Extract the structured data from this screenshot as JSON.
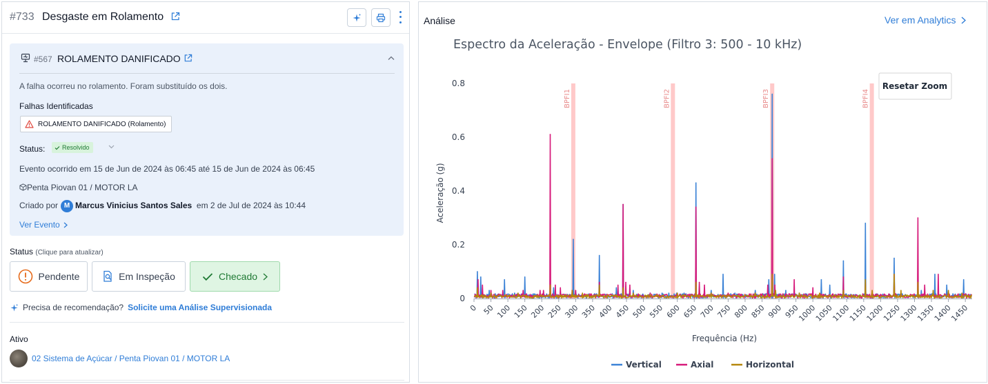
{
  "header": {
    "event_number": "#733",
    "event_title": "Desgaste em Rolamento"
  },
  "failure_card": {
    "number": "#567",
    "title": "ROLAMENTO DANIFICADO",
    "description": "A falha ocorreu no rolamento. Foram substituído os dois.",
    "identified_label": "Falhas Identificadas",
    "identified_tag": "ROLAMENTO DANIFICADO (Rolamento)",
    "status_label": "Status:",
    "status_value": "Resolvido",
    "event_time": "Evento ocorrido em 15 de Jun de 2024 às 06:45 até 15 de Jun de 2024 às 06:45",
    "asset_path": "Penta Piovan 01 / MOTOR LA",
    "created_prefix": "Criado por",
    "created_avatar": "M",
    "created_by": "Marcus Vinicius Santos Sales",
    "created_suffix": "em 2 de Jul de 2024 às 10:44",
    "view_event": "Ver Evento"
  },
  "status_section": {
    "label": "Status",
    "hint": "(Clique para atualizar)",
    "buttons": [
      "Pendente",
      "Em Inspeção",
      "Checado"
    ],
    "selected": "Checado"
  },
  "recommendation": {
    "question": "Precisa de recomendação?",
    "link": "Solicite uma Análise Supervisionada"
  },
  "asset": {
    "label": "Ativo",
    "path": "02 Sistema de Açúcar / Penta Piovan 01 / MOTOR LA"
  },
  "analysis": {
    "title": "Análise",
    "analytics_link": "Ver em Analytics",
    "reset_zoom": "Resetar Zoom"
  },
  "colors": {
    "vertical": "#3b82d6",
    "axial": "#d6197a",
    "horizontal": "#b5860b",
    "bpfi_band": "#ffc9c9",
    "accent": "#2f7dd7"
  },
  "chart_data": {
    "type": "line",
    "title": "Espectro da Aceleração - Envelope (Filtro 3: 500 - 10 kHz)",
    "xlabel": "Frequência (Hz)",
    "ylabel": "Aceleração (g)",
    "xlim": [
      0,
      1470
    ],
    "ylim": [
      0,
      0.8
    ],
    "x_ticks": [
      0,
      50,
      100,
      150,
      200,
      250,
      300,
      350,
      400,
      450,
      500,
      550,
      600,
      650,
      700,
      750,
      800,
      850,
      900,
      950,
      1000,
      1050,
      1100,
      1150,
      1200,
      1250,
      1300,
      1350,
      1400,
      1450
    ],
    "y_ticks": [
      0,
      0.2,
      0.4,
      0.6,
      0.8
    ],
    "y_tick_labels": [
      "0",
      "0.2",
      "0.4",
      "0.6",
      "0.8"
    ],
    "plot_bands": [
      {
        "label": "BPFI1",
        "x": 293
      },
      {
        "label": "BPFI2",
        "x": 587
      },
      {
        "label": "BPFI3",
        "x": 880
      },
      {
        "label": "BPFI4",
        "x": 1174
      }
    ],
    "legend": [
      "Vertical",
      "Axial",
      "Horizontal"
    ],
    "legend_position": "bottom",
    "series": [
      {
        "name": "Vertical",
        "peaks": [
          [
            10,
            0.1
          ],
          [
            20,
            0.08
          ],
          [
            45,
            0.03
          ],
          [
            90,
            0.07
          ],
          [
            120,
            0.02
          ],
          [
            150,
            0.08
          ],
          [
            225,
            0.05
          ],
          [
            235,
            0.04
          ],
          [
            293,
            0.22
          ],
          [
            300,
            0.03
          ],
          [
            370,
            0.16
          ],
          [
            420,
            0.04
          ],
          [
            440,
            0.35
          ],
          [
            470,
            0.03
          ],
          [
            520,
            0.02
          ],
          [
            555,
            0.02
          ],
          [
            575,
            0.02
          ],
          [
            598,
            0.02
          ],
          [
            620,
            0.02
          ],
          [
            655,
            0.43
          ],
          [
            700,
            0.03
          ],
          [
            735,
            0.09
          ],
          [
            770,
            0.02
          ],
          [
            830,
            0.03
          ],
          [
            870,
            0.07
          ],
          [
            880,
            0.76
          ],
          [
            887,
            0.09
          ],
          [
            920,
            0.03
          ],
          [
            960,
            0.02
          ],
          [
            1025,
            0.07
          ],
          [
            1050,
            0.05
          ],
          [
            1090,
            0.14
          ],
          [
            1155,
            0.28
          ],
          [
            1240,
            0.15
          ],
          [
            1320,
            0.03
          ],
          [
            1360,
            0.09
          ],
          [
            1395,
            0.05
          ],
          [
            1445,
            0.07
          ]
        ]
      },
      {
        "name": "Axial",
        "peaks": [
          [
            12,
            0.07
          ],
          [
            25,
            0.05
          ],
          [
            50,
            0.03
          ],
          [
            85,
            0.03
          ],
          [
            145,
            0.03
          ],
          [
            195,
            0.03
          ],
          [
            205,
            0.03
          ],
          [
            225,
            0.61
          ],
          [
            240,
            0.05
          ],
          [
            255,
            0.04
          ],
          [
            290,
            0.03
          ],
          [
            300,
            0.03
          ],
          [
            370,
            0.06
          ],
          [
            425,
            0.05
          ],
          [
            440,
            0.35
          ],
          [
            448,
            0.06
          ],
          [
            460,
            0.05
          ],
          [
            520,
            0.02
          ],
          [
            600,
            0.02
          ],
          [
            655,
            0.34
          ],
          [
            665,
            0.06
          ],
          [
            680,
            0.05
          ],
          [
            750,
            0.02
          ],
          [
            830,
            0.02
          ],
          [
            867,
            0.05
          ],
          [
            880,
            0.52
          ],
          [
            888,
            0.05
          ],
          [
            945,
            0.07
          ],
          [
            1000,
            0.04
          ],
          [
            1090,
            0.08
          ],
          [
            1155,
            0.06
          ],
          [
            1240,
            0.09
          ],
          [
            1310,
            0.3
          ],
          [
            1330,
            0.05
          ],
          [
            1370,
            0.09
          ]
        ]
      },
      {
        "name": "Horizontal",
        "peaks": [
          [
            10,
            0.04
          ],
          [
            50,
            0.02
          ],
          [
            130,
            0.02
          ],
          [
            225,
            0.05
          ],
          [
            290,
            0.03
          ],
          [
            320,
            0.02
          ],
          [
            370,
            0.05
          ],
          [
            440,
            0.04
          ],
          [
            470,
            0.02
          ],
          [
            600,
            0.02
          ],
          [
            655,
            0.06
          ],
          [
            700,
            0.02
          ],
          [
            830,
            0.02
          ],
          [
            880,
            0.09
          ],
          [
            890,
            0.03
          ],
          [
            960,
            0.02
          ],
          [
            1020,
            0.02
          ],
          [
            1090,
            0.03
          ],
          [
            1155,
            0.07
          ],
          [
            1175,
            0.03
          ],
          [
            1240,
            0.09
          ],
          [
            1260,
            0.03
          ],
          [
            1310,
            0.06
          ],
          [
            1355,
            0.03
          ],
          [
            1400,
            0.03
          ],
          [
            1440,
            0.02
          ]
        ]
      }
    ]
  }
}
